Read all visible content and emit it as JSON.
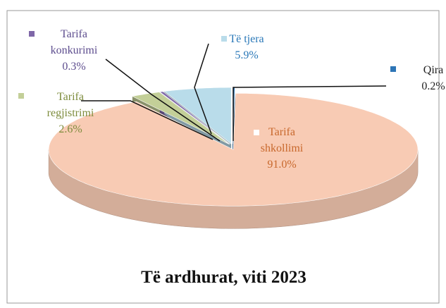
{
  "chart_data": {
    "type": "pie3d",
    "title": "Të ardhurat, viti 2023",
    "categories": [
      "Qira",
      "Tarifa shkollimi",
      "Tarifa regjistrimi",
      "Tarifa konkurimi",
      "Të tjera"
    ],
    "values": [
      0.2,
      91.0,
      2.6,
      0.3,
      5.9
    ],
    "value_labels": [
      "0.2%",
      "91.0%",
      "2.6%",
      "0.3%",
      "5.9%"
    ],
    "colors": [
      "#2e75b6",
      "#f8cbb4",
      "#c3cf98",
      "#7f67a8",
      "#b9dcea"
    ],
    "label_colors": [
      "#222222",
      "#c8682c",
      "#7d8c3c",
      "#5d4d8e",
      "#2a78b8"
    ]
  }
}
